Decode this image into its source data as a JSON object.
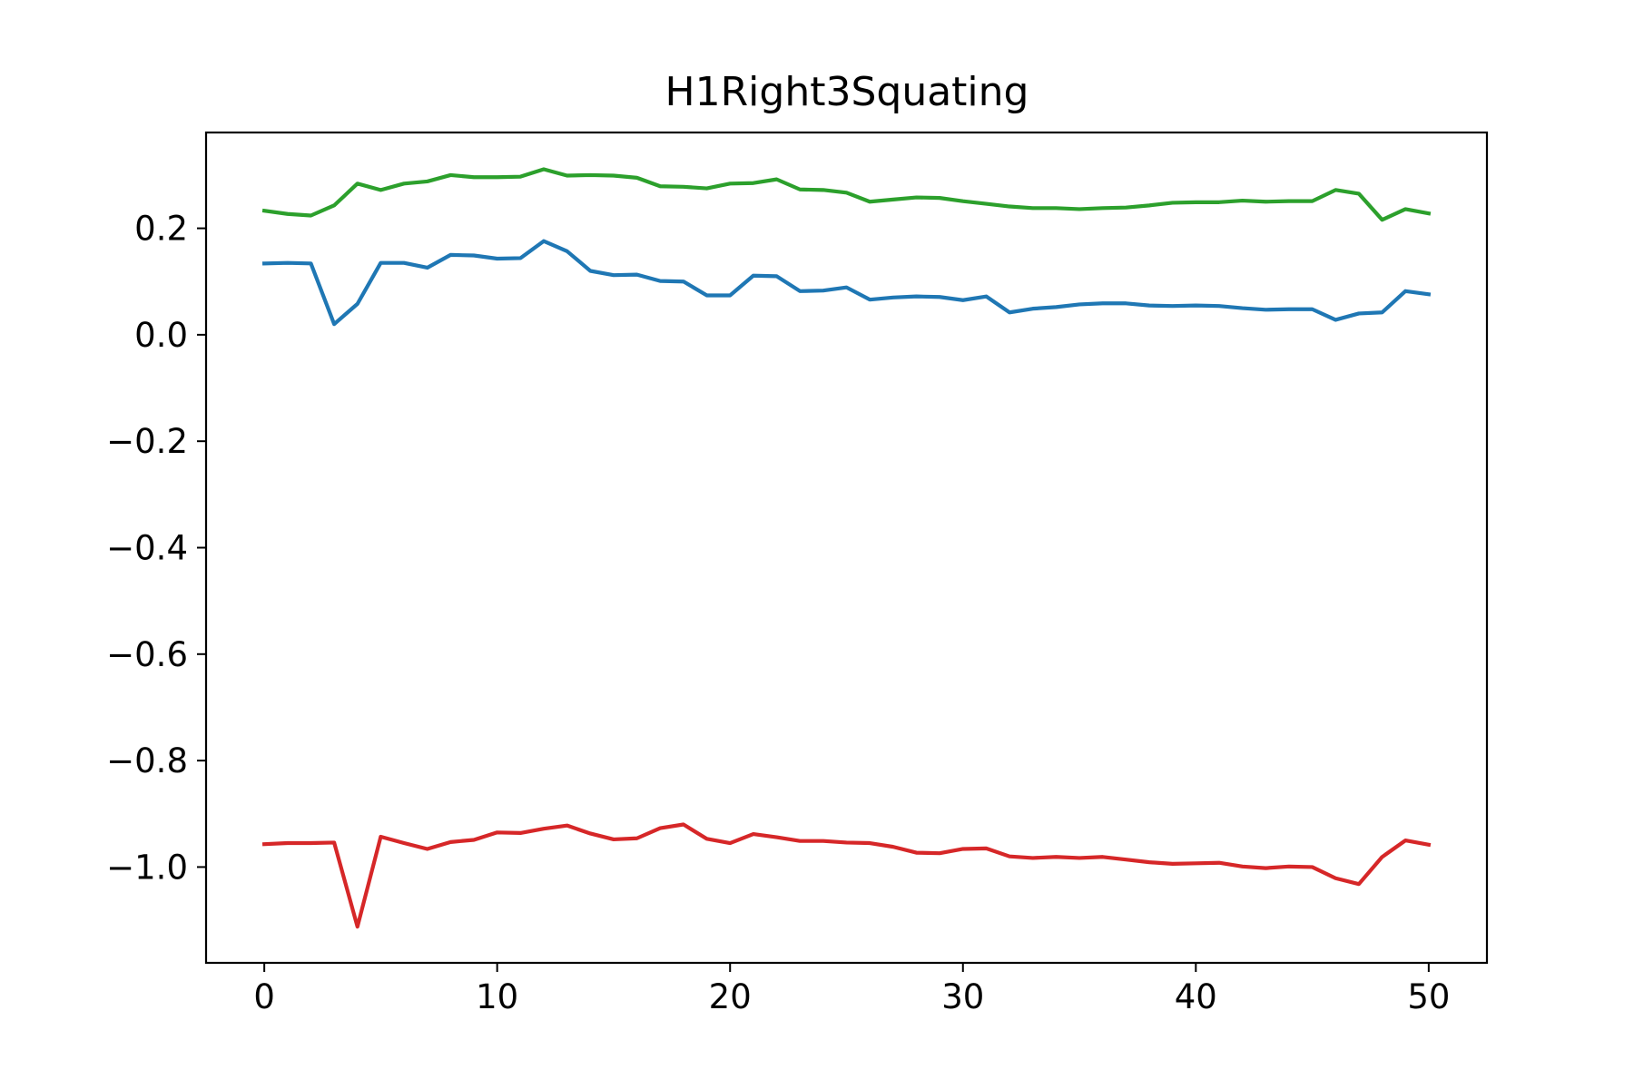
{
  "chart_data": {
    "type": "line",
    "title": "H1Right3Squating",
    "xlabel": "",
    "ylabel": "",
    "xlim": [
      -2.5,
      52.5
    ],
    "ylim": [
      -1.18,
      0.38
    ],
    "grid": false,
    "x_ticks": [
      0,
      10,
      20,
      30,
      40,
      50
    ],
    "x_tick_labels": [
      "0",
      "10",
      "20",
      "30",
      "40",
      "50"
    ],
    "y_ticks": [
      0.2,
      0.0,
      -0.2,
      -0.4,
      -0.6,
      -0.8,
      -1.0
    ],
    "y_tick_labels": [
      "0.2",
      "0.0",
      "−0.2",
      "−0.4",
      "−0.6",
      "−0.8",
      "−1.0"
    ],
    "x": [
      0,
      1,
      2,
      3,
      4,
      5,
      6,
      7,
      8,
      9,
      10,
      11,
      12,
      13,
      14,
      15,
      16,
      17,
      18,
      19,
      20,
      21,
      22,
      23,
      24,
      25,
      26,
      27,
      28,
      29,
      30,
      31,
      32,
      33,
      34,
      35,
      36,
      37,
      38,
      39,
      40,
      41,
      42,
      43,
      44,
      45,
      46,
      47,
      48,
      49,
      50
    ],
    "series": [
      {
        "color": "#1f77b4",
        "values": [
          0.134,
          0.135,
          0.134,
          0.02,
          0.058,
          0.135,
          0.135,
          0.126,
          0.15,
          0.149,
          0.143,
          0.144,
          0.176,
          0.157,
          0.12,
          0.112,
          0.113,
          0.101,
          0.1,
          0.074,
          0.074,
          0.111,
          0.11,
          0.082,
          0.083,
          0.089,
          0.066,
          0.07,
          0.072,
          0.071,
          0.065,
          0.072,
          0.042,
          0.049,
          0.052,
          0.057,
          0.059,
          0.059,
          0.055,
          0.054,
          0.055,
          0.054,
          0.05,
          0.047,
          0.048,
          0.048,
          0.028,
          0.04,
          0.042,
          0.082,
          0.076
        ]
      },
      {
        "color": "#2ca02c",
        "values": [
          0.233,
          0.227,
          0.224,
          0.243,
          0.284,
          0.272,
          0.284,
          0.288,
          0.3,
          0.296,
          0.296,
          0.297,
          0.311,
          0.299,
          0.3,
          0.299,
          0.295,
          0.279,
          0.278,
          0.275,
          0.284,
          0.285,
          0.292,
          0.273,
          0.272,
          0.267,
          0.25,
          0.254,
          0.258,
          0.257,
          0.251,
          0.246,
          0.241,
          0.238,
          0.238,
          0.236,
          0.238,
          0.239,
          0.243,
          0.248,
          0.249,
          0.249,
          0.252,
          0.25,
          0.251,
          0.251,
          0.272,
          0.265,
          0.216,
          0.236,
          0.228
        ]
      },
      {
        "color": "#d62728",
        "values": [
          -0.957,
          -0.955,
          -0.955,
          -0.954,
          -1.112,
          -0.943,
          -0.955,
          -0.966,
          -0.953,
          -0.949,
          -0.935,
          -0.936,
          -0.928,
          -0.922,
          -0.937,
          -0.948,
          -0.946,
          -0.927,
          -0.92,
          -0.947,
          -0.955,
          -0.938,
          -0.944,
          -0.951,
          -0.951,
          -0.954,
          -0.955,
          -0.962,
          -0.973,
          -0.974,
          -0.966,
          -0.965,
          -0.98,
          -0.983,
          -0.981,
          -0.983,
          -0.981,
          -0.986,
          -0.991,
          -0.994,
          -0.993,
          -0.992,
          -0.999,
          -1.002,
          -0.999,
          -1.0,
          -1.021,
          -1.032,
          -0.981,
          -0.95,
          -0.958
        ]
      }
    ]
  }
}
